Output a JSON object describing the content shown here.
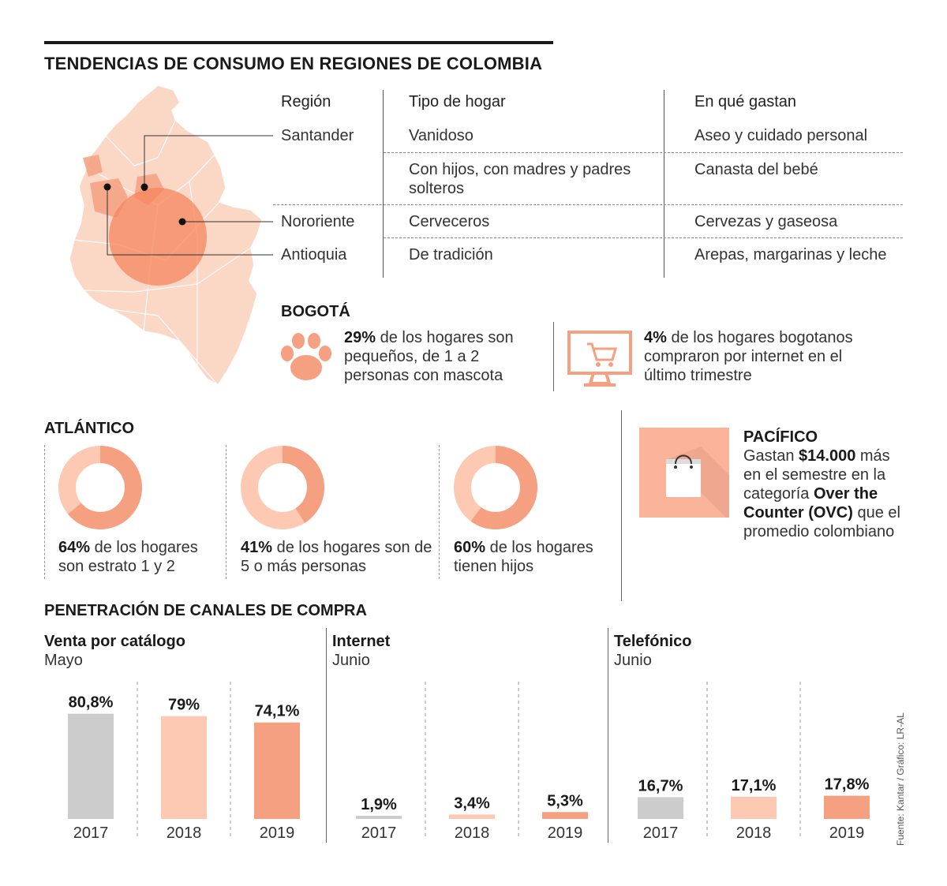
{
  "title": "TENDENCIAS DE CONSUMO EN REGIONES DE COLOMBIA",
  "colors": {
    "salmon": "#f5a080",
    "light_salmon": "#fdc9b2",
    "gray": "#cccccc",
    "map_fill": "#fbd7c6",
    "dark_text": "#1a1a1a"
  },
  "region_table": {
    "headers": [
      "Región",
      "Tipo de hogar",
      "En qué gastan"
    ],
    "rows": [
      {
        "region": "Santander",
        "tipo": "Vanidoso",
        "gasto": "Aseo y cuidado personal"
      },
      {
        "region": "",
        "tipo": "Con hijos, con madres y padres solteros",
        "gasto": "Canasta del bebé"
      },
      {
        "region": "Nororiente",
        "tipo": "Cerveceros",
        "gasto": "Cervezas y gaseosa"
      },
      {
        "region": "Antioquia",
        "tipo": "De tradición",
        "gasto": "Arepas, margarinas y leche"
      }
    ]
  },
  "bogota": {
    "title": "BOGOTÁ",
    "stat1_value": "29%",
    "stat1_text": " de los hogares son pequeños, de 1 a 2 personas con mascota",
    "stat1_icon": "paw-icon",
    "stat2_value": "4%",
    "stat2_text": " de los hogares bogotanos compraron por internet en el último trimestre",
    "stat2_icon": "shopping-cart-monitor-icon"
  },
  "atlantico": {
    "title": "ATLÁNTICO",
    "items": [
      {
        "value": "64%",
        "text": " de los hogares son estrato 1 y 2",
        "pct": 64
      },
      {
        "value": "41%",
        "text": " de los hogares son de 5 o más personas",
        "pct": 41
      },
      {
        "value": "60%",
        "text": " de los hogares tienen hijos",
        "pct": 60
      }
    ]
  },
  "pacifico": {
    "title": "PACÍFICO",
    "line1": "Gastan ",
    "amount": "$14.000",
    "line2": " más en el semestre en la categoría ",
    "category": "Over the Counter (OVC)",
    "line3": " que el promedio colombiano",
    "icon": "shopping-bag-icon"
  },
  "channels_title": "PENETRACIÓN DE CANALES DE COMPRA",
  "chart_data": [
    {
      "type": "bar",
      "title": "Venta por catálogo",
      "subtitle": "Mayo",
      "categories": [
        "2017",
        "2018",
        "2019"
      ],
      "values": [
        80.8,
        79,
        74.1
      ],
      "labels": [
        "80,8%",
        "79%",
        "74,1%"
      ],
      "ylim": [
        0,
        100
      ]
    },
    {
      "type": "bar",
      "title": "Internet",
      "subtitle": "Junio",
      "categories": [
        "2017",
        "2018",
        "2019"
      ],
      "values": [
        1.9,
        3.4,
        5.3
      ],
      "labels": [
        "1,9%",
        "3,4%",
        "5,3%"
      ],
      "ylim": [
        0,
        100
      ]
    },
    {
      "type": "bar",
      "title": "Telefónico",
      "subtitle": "Junio",
      "categories": [
        "2017",
        "2018",
        "2019"
      ],
      "values": [
        16.7,
        17.1,
        17.8
      ],
      "labels": [
        "16,7%",
        "17,1%",
        "17,8%"
      ],
      "ylim": [
        0,
        100
      ]
    }
  ],
  "source": "Fuente: Kantar / Gráfico: LR-AL"
}
